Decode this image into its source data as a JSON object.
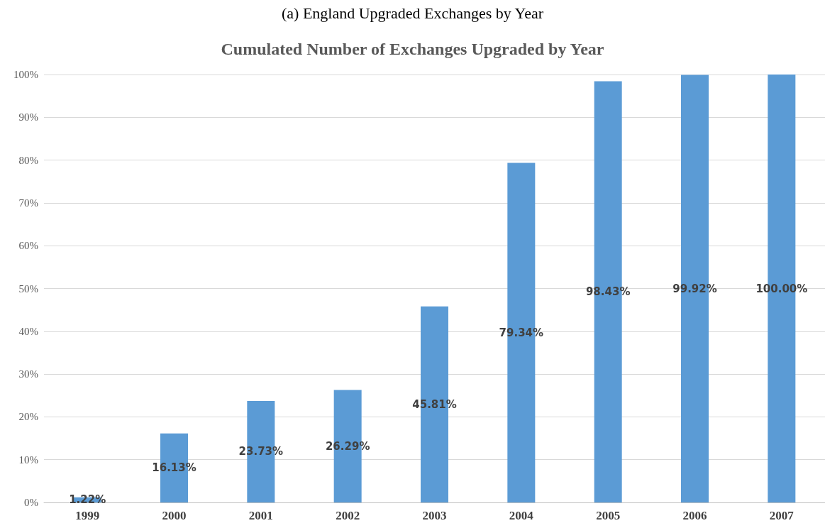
{
  "chart_data": {
    "type": "bar",
    "title": "(a) England Upgraded Exchanges by Year",
    "subtitle": "Cumulated Number of Exchanges Upgraded by Year",
    "categories": [
      "1999",
      "2000",
      "2001",
      "2002",
      "2003",
      "2004",
      "2005",
      "2006",
      "2007"
    ],
    "values": [
      1.22,
      16.13,
      23.73,
      26.29,
      45.81,
      79.34,
      98.43,
      99.92,
      100.0
    ],
    "value_labels": [
      "1.22%",
      "16.13%",
      "23.73%",
      "26.29%",
      "45.81%",
      "79.34%",
      "98.43%",
      "99.92%",
      "100.00%"
    ],
    "color": "#5b9bd5",
    "ylim": [
      0,
      100
    ],
    "yticks": [
      {
        "value": 0,
        "label": "0%"
      },
      {
        "value": 10,
        "label": "10%"
      },
      {
        "value": 20,
        "label": "20%"
      },
      {
        "value": 30,
        "label": "30%"
      },
      {
        "value": 40,
        "label": "40%"
      },
      {
        "value": 50,
        "label": "50%"
      },
      {
        "value": 60,
        "label": "60%"
      },
      {
        "value": 70,
        "label": "70%"
      },
      {
        "value": 80,
        "label": "80%"
      },
      {
        "value": 90,
        "label": "90%"
      },
      {
        "value": 100,
        "label": "100%"
      }
    ],
    "grid": "y"
  }
}
